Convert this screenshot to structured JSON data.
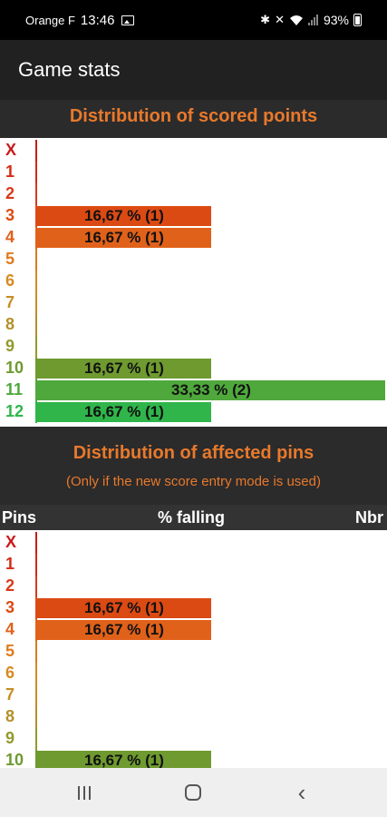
{
  "status_bar": {
    "carrier": "Orange F",
    "time": "13:46",
    "battery": "93%",
    "icons": [
      "image-icon",
      "bluetooth-icon",
      "mute-icon",
      "wifi-icon",
      "signal-icon",
      "battery-icon"
    ]
  },
  "app_bar": {
    "title": "Game stats"
  },
  "scored_points": {
    "title": "Distribution of scored points",
    "rows": [
      {
        "label": "X",
        "color": "#cc1a1a",
        "value": 0,
        "text": ""
      },
      {
        "label": "1",
        "color": "#d42a14",
        "value": 0,
        "text": ""
      },
      {
        "label": "2",
        "color": "#d8391a",
        "value": 0,
        "text": ""
      },
      {
        "label": "3",
        "color": "#dc4a14",
        "value": 16.67,
        "text": "16,67 % (1)"
      },
      {
        "label": "4",
        "color": "#e0611a",
        "value": 16.67,
        "text": "16,67 % (1)"
      },
      {
        "label": "5",
        "color": "#e07a1c",
        "value": 0,
        "text": ""
      },
      {
        "label": "6",
        "color": "#d78a20",
        "value": 0,
        "text": ""
      },
      {
        "label": "7",
        "color": "#c78d24",
        "value": 0,
        "text": ""
      },
      {
        "label": "8",
        "color": "#b39028",
        "value": 0,
        "text": ""
      },
      {
        "label": "9",
        "color": "#939a2c",
        "value": 0,
        "text": ""
      },
      {
        "label": "10",
        "color": "#6e9a30",
        "value": 16.67,
        "text": "16,67 % (1)"
      },
      {
        "label": "11",
        "color": "#4fa83c",
        "value": 33.33,
        "text": "33,33 % (2)"
      },
      {
        "label": "12",
        "color": "#2fb54a",
        "value": 16.67,
        "text": "16,67 % (1)"
      }
    ]
  },
  "affected_pins": {
    "title": "Distribution of affected pins",
    "subtitle": "(Only if the new score entry mode is used)",
    "columns": [
      "Pins",
      "% falling",
      "Nbr"
    ],
    "rows": [
      {
        "label": "X",
        "color": "#cc1a1a",
        "value": 0,
        "text": ""
      },
      {
        "label": "1",
        "color": "#d42a14",
        "value": 0,
        "text": ""
      },
      {
        "label": "2",
        "color": "#d8391a",
        "value": 0,
        "text": ""
      },
      {
        "label": "3",
        "color": "#dc4a14",
        "value": 16.67,
        "text": "16,67 % (1)"
      },
      {
        "label": "4",
        "color": "#e0611a",
        "value": 16.67,
        "text": "16,67 % (1)"
      },
      {
        "label": "5",
        "color": "#e07a1c",
        "value": 0,
        "text": ""
      },
      {
        "label": "6",
        "color": "#d78a20",
        "value": 0,
        "text": ""
      },
      {
        "label": "7",
        "color": "#c78d24",
        "value": 0,
        "text": ""
      },
      {
        "label": "8",
        "color": "#b39028",
        "value": 0,
        "text": ""
      },
      {
        "label": "9",
        "color": "#939a2c",
        "value": 0,
        "text": ""
      },
      {
        "label": "10",
        "color": "#6e9a30",
        "value": 16.67,
        "text": "16,67 % (1)"
      }
    ]
  },
  "nav_bar": {
    "icons": [
      "recent-apps-icon",
      "home-icon",
      "back-icon"
    ]
  }
}
